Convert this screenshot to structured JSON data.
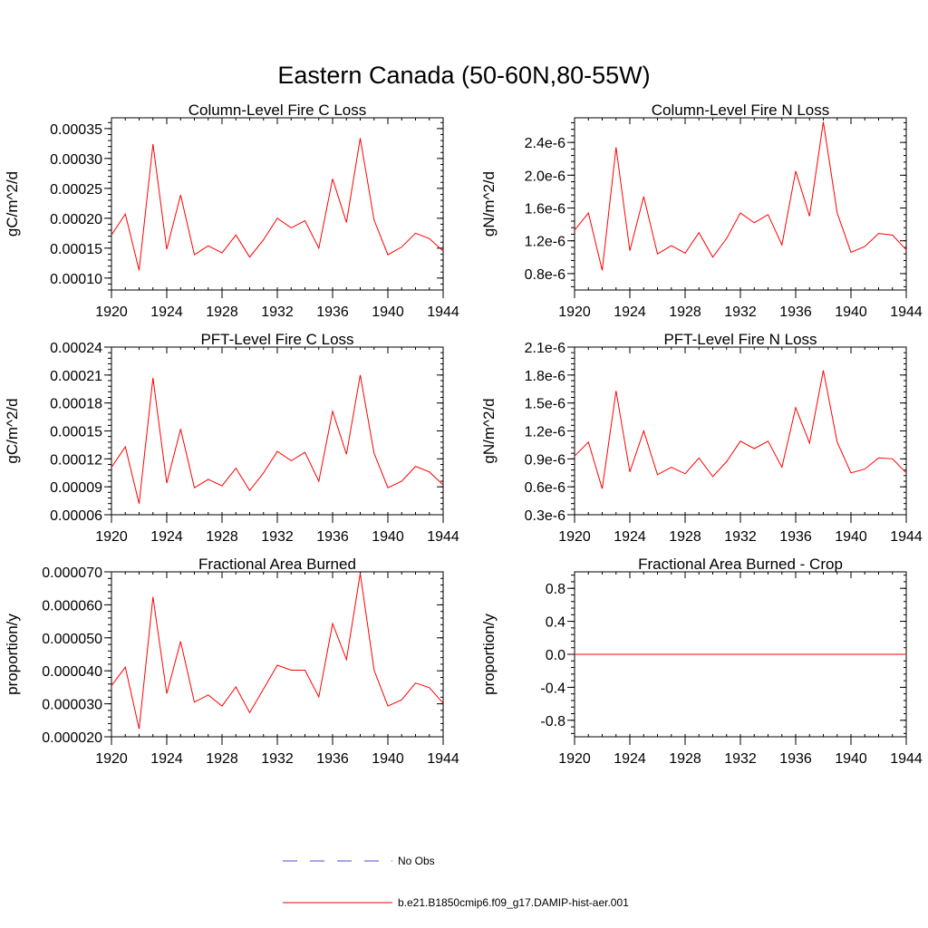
{
  "figure": {
    "title": "Eastern Canada (50-60N,80-55W)"
  },
  "legend": {
    "entries": [
      {
        "label": "No Obs",
        "color": "#4b4bc8",
        "style": "dashed"
      },
      {
        "label": "b.e21.B1850cmip6.f09_g17.DAMIP-hist-aer.001",
        "color": "#ff0000",
        "style": "solid"
      }
    ]
  },
  "chart_data": [
    {
      "type": "line",
      "title": "Column-Level Fire C Loss",
      "ylabel": "gC/m^2/d",
      "xlim": [
        1920,
        1944
      ],
      "ylim": [
        8e-05,
        0.000368
      ],
      "xticks": [
        1920,
        1924,
        1928,
        1932,
        1936,
        1940,
        1944
      ],
      "xtick_labels": [
        "1920",
        "1924",
        "1928",
        "1932",
        "1936",
        "1940",
        "1944"
      ],
      "yticks": [
        0.0001,
        0.00015,
        0.0002,
        0.00025,
        0.0003,
        0.00035
      ],
      "ytick_labels": [
        "0.00010",
        "0.00015",
        "0.00020",
        "0.00025",
        "0.00030",
        "0.00035"
      ],
      "series": [
        {
          "name": "b.e21.B1850cmip6.f09_g17.DAMIP-hist-aer.001",
          "color": "#ff0000",
          "x": [
            1920,
            1921,
            1922,
            1923,
            1924,
            1925,
            1926,
            1927,
            1928,
            1929,
            1930,
            1931,
            1932,
            1933,
            1934,
            1935,
            1936,
            1937,
            1938,
            1939,
            1940,
            1941,
            1942,
            1943,
            1944
          ],
          "values": [
            0.000172,
            0.000207,
            0.000113,
            0.000324,
            0.000148,
            0.000239,
            0.000139,
            0.000154,
            0.000142,
            0.000172,
            0.000135,
            0.000164,
            0.0002,
            0.000184,
            0.000196,
            0.00015,
            0.000266,
            0.000193,
            0.000334,
            0.000197,
            0.000139,
            0.000152,
            0.000175,
            0.000166,
            0.000145
          ]
        }
      ]
    },
    {
      "type": "line",
      "title": "Column-Level Fire N Loss",
      "ylabel": "gN/m^2/d",
      "xlim": [
        1920,
        1944
      ],
      "ylim": [
        6e-07,
        2.7e-06
      ],
      "xticks": [
        1920,
        1924,
        1928,
        1932,
        1936,
        1940,
        1944
      ],
      "xtick_labels": [
        "1920",
        "1924",
        "1928",
        "1932",
        "1936",
        "1940",
        "1944"
      ],
      "yticks": [
        8e-07,
        1.2e-06,
        1.6e-06,
        2e-06,
        2.4e-06
      ],
      "ytick_labels": [
        "0.8e-6",
        "1.2e-6",
        "1.6e-6",
        "2.0e-6",
        "2.4e-6"
      ],
      "series": [
        {
          "name": "b.e21.B1850cmip6.f09_g17.DAMIP-hist-aer.001",
          "color": "#ff0000",
          "x": [
            1920,
            1921,
            1922,
            1923,
            1924,
            1925,
            1926,
            1927,
            1928,
            1929,
            1930,
            1931,
            1932,
            1933,
            1934,
            1935,
            1936,
            1937,
            1938,
            1939,
            1940,
            1941,
            1942,
            1943,
            1944
          ],
          "values": [
            1.33e-06,
            1.54e-06,
            8.4e-07,
            2.34e-06,
            1.08e-06,
            1.74e-06,
            1.04e-06,
            1.14e-06,
            1.05e-06,
            1.3e-06,
            1e-06,
            1.23e-06,
            1.54e-06,
            1.42e-06,
            1.52e-06,
            1.15e-06,
            2.05e-06,
            1.5e-06,
            2.65e-06,
            1.54e-06,
            1.06e-06,
            1.13e-06,
            1.29e-06,
            1.27e-06,
            1.09e-06
          ]
        }
      ]
    },
    {
      "type": "line",
      "title": "PFT-Level Fire C Loss",
      "ylabel": "gC/m^2/d",
      "xlim": [
        1920,
        1944
      ],
      "ylim": [
        6e-05,
        0.00024
      ],
      "xticks": [
        1920,
        1924,
        1928,
        1932,
        1936,
        1940,
        1944
      ],
      "xtick_labels": [
        "1920",
        "1924",
        "1928",
        "1932",
        "1936",
        "1940",
        "1944"
      ],
      "yticks": [
        6e-05,
        9e-05,
        0.00012,
        0.00015,
        0.00018,
        0.00021,
        0.00024
      ],
      "ytick_labels": [
        "0.00006",
        "0.00009",
        "0.00012",
        "0.00015",
        "0.00018",
        "0.00021",
        "0.00024"
      ],
      "series": [
        {
          "name": "b.e21.B1850cmip6.f09_g17.DAMIP-hist-aer.001",
          "color": "#ff0000",
          "x": [
            1920,
            1921,
            1922,
            1923,
            1924,
            1925,
            1926,
            1927,
            1928,
            1929,
            1930,
            1931,
            1932,
            1933,
            1934,
            1935,
            1936,
            1937,
            1938,
            1939,
            1940,
            1941,
            1942,
            1943,
            1944
          ],
          "values": [
            0.000111,
            0.000133,
            7.2e-05,
            0.000207,
            9.4e-05,
            0.000152,
            8.9e-05,
            9.8e-05,
            9.1e-05,
            0.00011,
            8.6e-05,
            0.000105,
            0.000128,
            0.000118,
            0.000127,
            9.6e-05,
            0.000171,
            0.000125,
            0.00021,
            0.000126,
            8.9e-05,
            9.6e-05,
            0.000112,
            0.000106,
            9.2e-05
          ]
        }
      ]
    },
    {
      "type": "line",
      "title": "PFT-Level Fire N Loss",
      "ylabel": "gN/m^2/d",
      "xlim": [
        1920,
        1944
      ],
      "ylim": [
        3e-07,
        2.1e-06
      ],
      "xticks": [
        1920,
        1924,
        1928,
        1932,
        1936,
        1940,
        1944
      ],
      "xtick_labels": [
        "1920",
        "1924",
        "1928",
        "1932",
        "1936",
        "1940",
        "1944"
      ],
      "yticks": [
        3e-07,
        6e-07,
        9e-07,
        1.2e-06,
        1.5e-06,
        1.8e-06,
        2.1e-06
      ],
      "ytick_labels": [
        "0.3e-6",
        "0.6e-6",
        "0.9e-6",
        "1.2e-6",
        "1.5e-6",
        "1.8e-6",
        "2.1e-6"
      ],
      "series": [
        {
          "name": "b.e21.B1850cmip6.f09_g17.DAMIP-hist-aer.001",
          "color": "#ff0000",
          "x": [
            1920,
            1921,
            1922,
            1923,
            1924,
            1925,
            1926,
            1927,
            1928,
            1929,
            1930,
            1931,
            1932,
            1933,
            1934,
            1935,
            1936,
            1937,
            1938,
            1939,
            1940,
            1941,
            1942,
            1943,
            1944
          ],
          "values": [
            9.3e-07,
            1.08e-06,
            5.8e-07,
            1.63e-06,
            7.6e-07,
            1.2e-06,
            7.3e-07,
            8.1e-07,
            7.4e-07,
            9.1e-07,
            7.1e-07,
            8.7e-07,
            1.09e-06,
            1.01e-06,
            1.09e-06,
            8.1e-07,
            1.45e-06,
            1.07e-06,
            1.85e-06,
            1.08e-06,
            7.5e-07,
            7.9e-07,
            9.1e-07,
            9e-07,
            7.5e-07
          ]
        }
      ]
    },
    {
      "type": "line",
      "title": "Fractional Area Burned",
      "ylabel": "proportion/y",
      "xlim": [
        1920,
        1944
      ],
      "ylim": [
        2e-05,
        7e-05
      ],
      "xticks": [
        1920,
        1924,
        1928,
        1932,
        1936,
        1940,
        1944
      ],
      "xtick_labels": [
        "1920",
        "1924",
        "1928",
        "1932",
        "1936",
        "1940",
        "1944"
      ],
      "yticks": [
        2e-05,
        3e-05,
        4e-05,
        5e-05,
        6e-05,
        7e-05
      ],
      "ytick_labels": [
        "0.000020",
        "0.000030",
        "0.000040",
        "0.000050",
        "0.000060",
        "0.000070"
      ],
      "series": [
        {
          "name": "b.e21.B1850cmip6.f09_g17.DAMIP-hist-aer.001",
          "color": "#ff0000",
          "x": [
            1920,
            1921,
            1922,
            1923,
            1924,
            1925,
            1926,
            1927,
            1928,
            1929,
            1930,
            1931,
            1932,
            1933,
            1934,
            1935,
            1936,
            1937,
            1938,
            1939,
            1940,
            1941,
            1942,
            1943,
            1944
          ],
          "values": [
            3.55e-05,
            4.11e-05,
            2.24e-05,
            6.24e-05,
            3.31e-05,
            4.89e-05,
            3.05e-05,
            3.27e-05,
            2.93e-05,
            3.51e-05,
            2.73e-05,
            3.45e-05,
            4.17e-05,
            4.02e-05,
            4.02e-05,
            3.21e-05,
            5.43e-05,
            4.34e-05,
            6.95e-05,
            4.02e-05,
            2.93e-05,
            3.12e-05,
            3.63e-05,
            3.49e-05,
            3.02e-05
          ]
        }
      ]
    },
    {
      "type": "line",
      "title": "Fractional Area Burned - Crop",
      "ylabel": "proportion/y",
      "xlim": [
        1920,
        1944
      ],
      "ylim": [
        -1,
        1
      ],
      "xticks": [
        1920,
        1924,
        1928,
        1932,
        1936,
        1940,
        1944
      ],
      "xtick_labels": [
        "1920",
        "1924",
        "1928",
        "1932",
        "1936",
        "1940",
        "1944"
      ],
      "yticks": [
        -0.8,
        -0.4,
        0.0,
        0.4,
        0.8
      ],
      "ytick_labels": [
        "-0.8",
        "-0.4",
        "0.0",
        "0.4",
        "0.8"
      ],
      "series": [
        {
          "name": "b.e21.B1850cmip6.f09_g17.DAMIP-hist-aer.001",
          "color": "#ff0000",
          "x": [
            1920,
            1944
          ],
          "values": [
            0,
            0
          ]
        }
      ]
    }
  ]
}
